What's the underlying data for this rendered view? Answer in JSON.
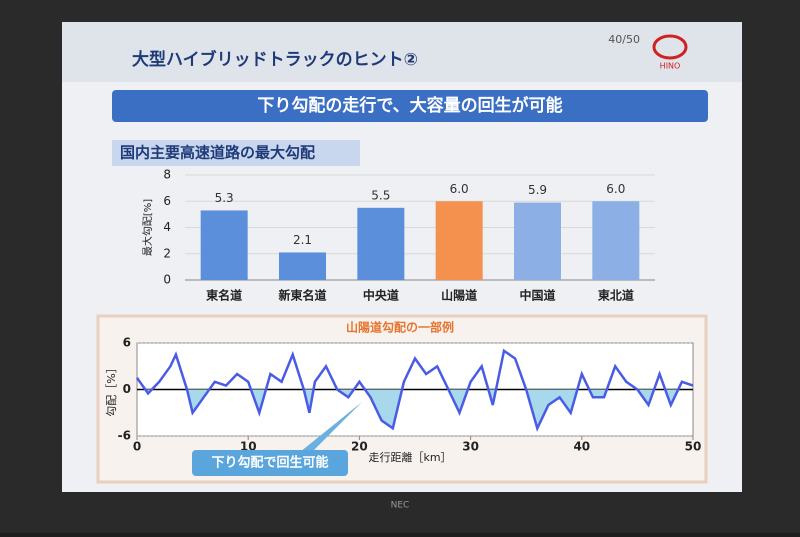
{
  "slide": {
    "title": "大型ハイブリッドトラックのヒント②",
    "page": "40/50",
    "logo": "HINO",
    "banner": "下り勾配の走行で、大容量の回生が可能",
    "section": "国内主要高速道路の最大勾配",
    "brand": "NEC"
  },
  "chart_data": [
    {
      "type": "bar",
      "ylabel": "最大勾配[%]",
      "categories": [
        "東名道",
        "新東名道",
        "中央道",
        "山陽道",
        "中国道",
        "東北道"
      ],
      "values": [
        5.3,
        2.1,
        5.5,
        6.0,
        5.9,
        6.0
      ],
      "value_labels": [
        "5.3",
        "2.1",
        "5.5",
        "6.0",
        "5.9",
        "6.0"
      ],
      "colors": [
        "#5b8fdc",
        "#5b8fdc",
        "#5b8fdc",
        "#f4914e",
        "#8cb0e6",
        "#8cb0e6"
      ],
      "ylim": [
        0,
        8
      ],
      "yticks": [
        0,
        2,
        4,
        6,
        8
      ],
      "grid": true
    },
    {
      "type": "line",
      "title": "山陽道勾配の一部例",
      "xlabel": "走行距離［km］",
      "ylabel": "勾配［%］",
      "annotation": "下り勾配で回生可能",
      "x": [
        0,
        1,
        2,
        3,
        3.5,
        4.5,
        5,
        6,
        7,
        8,
        9,
        10,
        11,
        12,
        13,
        14,
        15,
        15.5,
        16,
        17,
        18,
        19,
        20,
        21,
        22,
        23,
        24,
        25,
        26,
        27,
        28,
        29,
        30,
        31,
        32,
        33,
        34,
        35,
        36,
        37,
        38,
        39,
        40,
        41,
        42,
        43,
        44,
        45,
        46,
        47,
        48,
        49,
        50
      ],
      "values": [
        1.5,
        -0.5,
        1,
        3,
        4.5,
        0,
        -3,
        -1,
        1,
        0.5,
        2,
        1,
        -3,
        2,
        1,
        4.5,
        0,
        -3,
        1,
        3,
        0,
        -1,
        1,
        -1,
        -4,
        -5,
        1,
        4,
        2,
        3,
        0,
        -3,
        1,
        3,
        -2,
        5,
        4,
        0,
        -5,
        -2,
        -1,
        -3,
        2,
        -1,
        -1,
        3,
        1,
        0,
        -2,
        2,
        -2,
        1,
        0.5
      ],
      "color": "#4a5ce6",
      "fill_color": "#a8d8ec",
      "xlim": [
        0,
        50
      ],
      "xticks": [
        0,
        10,
        20,
        30,
        40,
        50
      ],
      "ylim": [
        -6,
        6
      ],
      "yticks": [
        -6,
        0,
        6
      ],
      "grid": true
    }
  ]
}
